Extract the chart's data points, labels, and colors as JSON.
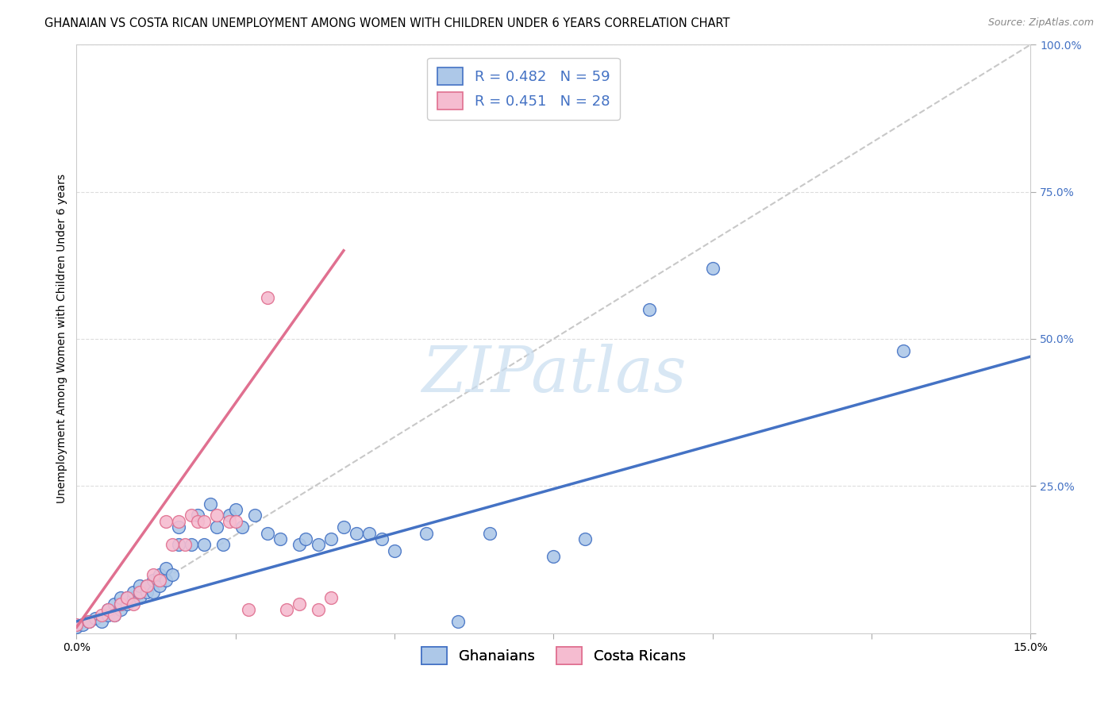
{
  "title": "GHANAIAN VS COSTA RICAN UNEMPLOYMENT AMONG WOMEN WITH CHILDREN UNDER 6 YEARS CORRELATION CHART",
  "source": "Source: ZipAtlas.com",
  "ylabel": "Unemployment Among Women with Children Under 6 years",
  "xlim": [
    0.0,
    0.15
  ],
  "ylim": [
    0.0,
    1.0
  ],
  "xtick_labels": [
    "0.0%",
    "15.0%"
  ],
  "ytick_labels": [
    "",
    "25.0%",
    "50.0%",
    "75.0%",
    "100.0%"
  ],
  "ghana_R": 0.482,
  "ghana_N": 59,
  "cr_R": 0.451,
  "cr_N": 28,
  "ghana_color": "#adc8e8",
  "cr_color": "#f5bcd0",
  "ghana_line_color": "#4472c4",
  "cr_line_color": "#e07090",
  "ref_line_color": "#c8c8c8",
  "watermark_text": "ZIPatlas",
  "watermark_color": "#c8ddf0",
  "ghana_points_x": [
    0.0,
    0.001,
    0.002,
    0.003,
    0.004,
    0.005,
    0.005,
    0.006,
    0.006,
    0.007,
    0.007,
    0.007,
    0.008,
    0.008,
    0.009,
    0.009,
    0.01,
    0.01,
    0.01,
    0.011,
    0.011,
    0.012,
    0.012,
    0.013,
    0.013,
    0.014,
    0.014,
    0.015,
    0.016,
    0.016,
    0.018,
    0.019,
    0.02,
    0.021,
    0.022,
    0.023,
    0.024,
    0.025,
    0.026,
    0.028,
    0.03,
    0.032,
    0.035,
    0.036,
    0.038,
    0.04,
    0.042,
    0.044,
    0.046,
    0.048,
    0.05,
    0.055,
    0.06,
    0.065,
    0.075,
    0.08,
    0.09,
    0.1,
    0.13
  ],
  "ghana_points_y": [
    0.01,
    0.015,
    0.02,
    0.025,
    0.02,
    0.03,
    0.04,
    0.03,
    0.05,
    0.04,
    0.05,
    0.06,
    0.05,
    0.06,
    0.06,
    0.07,
    0.06,
    0.07,
    0.08,
    0.07,
    0.08,
    0.07,
    0.09,
    0.08,
    0.1,
    0.09,
    0.11,
    0.1,
    0.15,
    0.18,
    0.15,
    0.2,
    0.15,
    0.22,
    0.18,
    0.15,
    0.2,
    0.21,
    0.18,
    0.2,
    0.17,
    0.16,
    0.15,
    0.16,
    0.15,
    0.16,
    0.18,
    0.17,
    0.17,
    0.16,
    0.14,
    0.17,
    0.02,
    0.17,
    0.13,
    0.16,
    0.55,
    0.62,
    0.48
  ],
  "cr_points_x": [
    0.0,
    0.002,
    0.004,
    0.005,
    0.006,
    0.007,
    0.008,
    0.009,
    0.01,
    0.011,
    0.012,
    0.013,
    0.014,
    0.015,
    0.016,
    0.017,
    0.018,
    0.019,
    0.02,
    0.022,
    0.024,
    0.025,
    0.027,
    0.03,
    0.033,
    0.035,
    0.038,
    0.04
  ],
  "cr_points_y": [
    0.015,
    0.02,
    0.03,
    0.04,
    0.03,
    0.05,
    0.06,
    0.05,
    0.07,
    0.08,
    0.1,
    0.09,
    0.19,
    0.15,
    0.19,
    0.15,
    0.2,
    0.19,
    0.19,
    0.2,
    0.19,
    0.19,
    0.04,
    0.57,
    0.04,
    0.05,
    0.04,
    0.06
  ],
  "ghana_line_x": [
    0.0,
    0.15
  ],
  "ghana_line_y": [
    0.02,
    0.47
  ],
  "cr_line_x": [
    0.0,
    0.042
  ],
  "cr_line_y": [
    0.01,
    0.65
  ],
  "ref_line_x": [
    0.0,
    0.15
  ],
  "ref_line_y": [
    0.0,
    1.0
  ],
  "background_color": "#ffffff",
  "grid_color": "#dddddd",
  "title_fontsize": 10.5,
  "axis_label_fontsize": 10,
  "tick_fontsize": 10,
  "legend_fontsize": 13,
  "marker_size": 130
}
